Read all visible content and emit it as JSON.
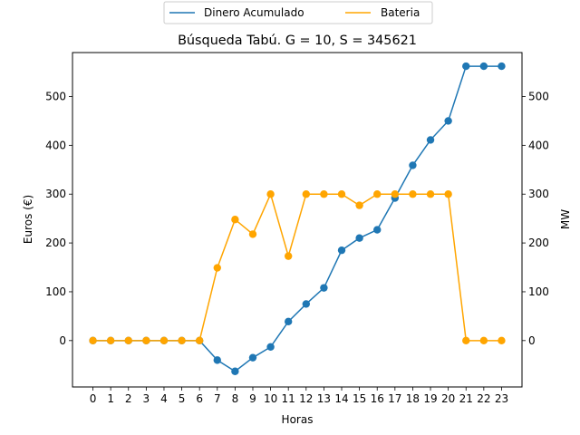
{
  "chart_data": {
    "type": "line",
    "title": "Búsqueda Tabú. G = 10, S = 345621",
    "xlabel": "Horas",
    "ylabel_left": "Euros (€)",
    "ylabel_right": "MW",
    "x": [
      0,
      1,
      2,
      3,
      4,
      5,
      6,
      7,
      8,
      9,
      10,
      11,
      12,
      13,
      14,
      15,
      16,
      17,
      18,
      19,
      20,
      21,
      22,
      23
    ],
    "xlim": [
      -1.15,
      24.15
    ],
    "ylim_left": [
      -95,
      590
    ],
    "ylim_right": [
      -95,
      590
    ],
    "yticks": [
      0,
      100,
      200,
      300,
      400,
      500
    ],
    "grid": false,
    "legend_position": "top-center",
    "series": [
      {
        "name": "Dinero Acumulado",
        "color": "#1f77b4",
        "axis": "left",
        "values": [
          0,
          0,
          0,
          0,
          0,
          0,
          0,
          -40,
          -63,
          -35,
          -13,
          39,
          75,
          108,
          185,
          210,
          227,
          292,
          359,
          411,
          450,
          562,
          562,
          562
        ]
      },
      {
        "name": "Bateria",
        "color": "#ffa500",
        "axis": "right",
        "values": [
          0,
          0,
          0,
          0,
          0,
          0,
          0,
          149,
          248,
          218,
          300,
          173,
          300,
          300,
          300,
          277,
          300,
          300,
          300,
          300,
          300,
          0,
          0,
          0
        ]
      }
    ]
  }
}
